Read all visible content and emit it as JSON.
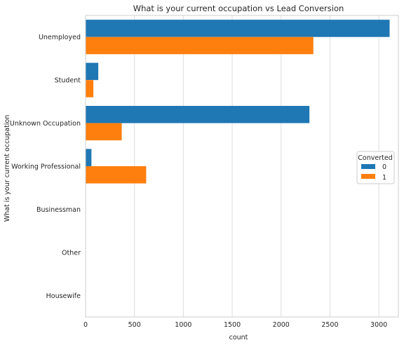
{
  "chart_data": {
    "type": "bar",
    "orientation": "horizontal",
    "title": "What is your current occupation vs Lead Conversion",
    "xlabel": "count",
    "ylabel": "What is your current occupation",
    "categories": [
      "Unemployed",
      "Student",
      "Unknown Occupation",
      "Working Professional",
      "Businessman",
      "Other",
      "Housewife"
    ],
    "series": [
      {
        "name": "0",
        "color": "#1f77b4",
        "values": [
          3110,
          130,
          2290,
          60,
          0,
          0,
          0
        ]
      },
      {
        "name": "1",
        "color": "#ff7f0e",
        "values": [
          2330,
          80,
          370,
          620,
          0,
          0,
          0
        ]
      }
    ],
    "xlim": [
      0,
      3200
    ],
    "xticks": [
      0,
      500,
      1000,
      1500,
      2000,
      2500,
      3000
    ],
    "xtick_labels": [
      "0",
      "500",
      "1000",
      "1500",
      "2000",
      "2500",
      "3000"
    ],
    "grid": true,
    "legend": {
      "title": "Converted",
      "placement": "center-right"
    }
  }
}
